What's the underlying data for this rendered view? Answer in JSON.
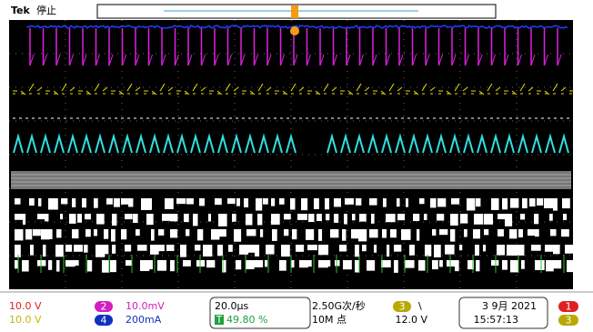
{
  "header": {
    "brand": "Tek",
    "status": "停止"
  },
  "readout": {
    "ch1_scale": "10.0 V",
    "ch3_scale": "10.0 V",
    "ch2_badge": "2",
    "ch2_scale": "10.0mV",
    "ch4_badge": "4",
    "ch4_scale": "200mA",
    "timebase": "20.0µs",
    "trigger_badge": "T",
    "trigger_position": "49.80 %",
    "sample_rate": "2.50G次/秒",
    "record_length": "10M 点",
    "trigger_source": "3",
    "trigger_slope": "\\",
    "trigger_level": "12.0 V",
    "date": "3 9月 2021",
    "time": "15:57:13",
    "right_badge_1": "1",
    "right_badge_3": "3"
  }
}
